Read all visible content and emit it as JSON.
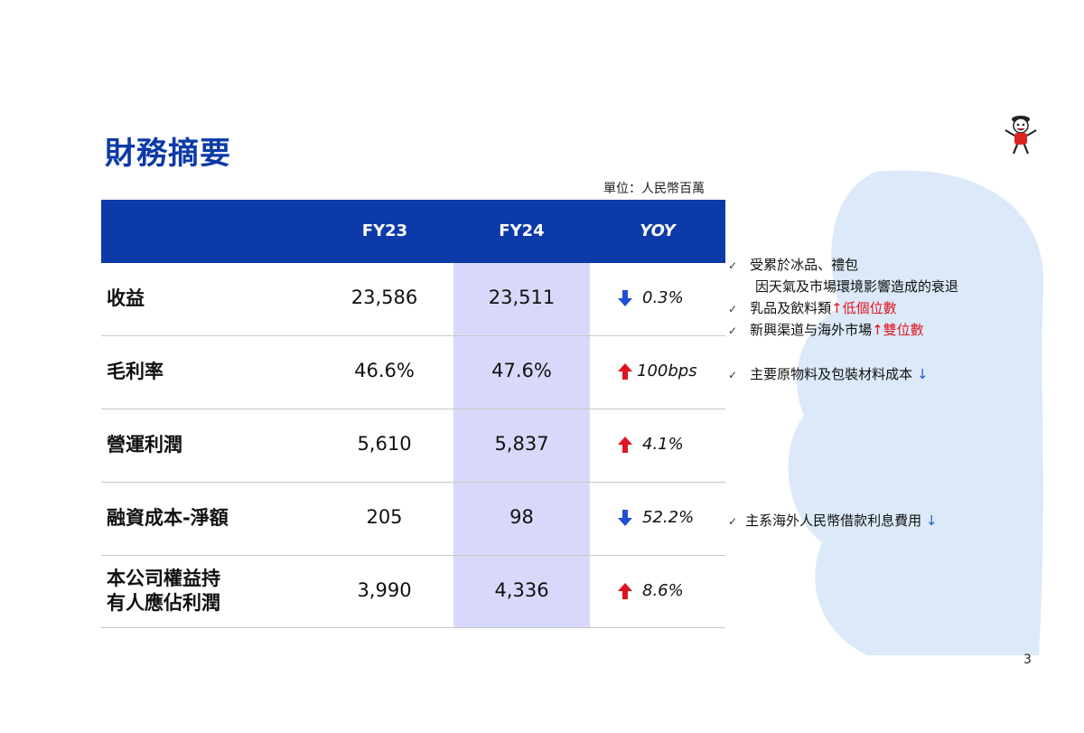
{
  "header": {
    "title": "財務摘要",
    "unit": "單位：人民幣百萬",
    "page_number": "3"
  },
  "table": {
    "columns": [
      "",
      "FY23",
      "FY24",
      "YOY"
    ],
    "rows": [
      {
        "label": "收益",
        "fy23": "23,586",
        "fy24": "23,511",
        "direction": "down",
        "yoy": "0.3%"
      },
      {
        "label": "毛利率",
        "fy23": "46.6%",
        "fy24": "47.6%",
        "direction": "up",
        "yoy": "100bps"
      },
      {
        "label": "營運利潤",
        "fy23": "5,610",
        "fy24": "5,837",
        "direction": "up",
        "yoy": "4.1%"
      },
      {
        "label": "融資成本-淨額",
        "fy23": "205",
        "fy24": "98",
        "direction": "down",
        "yoy": "52.2%"
      },
      {
        "label_line1": "本公司權益持",
        "label_line2": "有人應佔利潤",
        "fy23": "3,990",
        "fy24": "4,336",
        "direction": "up",
        "yoy": "8.6%"
      }
    ]
  },
  "notes": {
    "check_mark": "✓",
    "revenue_1": "受累於冰品、禮包",
    "revenue_1b": "因天氣及市場環境影響造成的衰退",
    "revenue_2": "乳品及飲料類",
    "revenue_2_arrow": "↑",
    "revenue_2_hl": "低個位數",
    "revenue_3": "新興渠道与海外市場",
    "revenue_3_arrow": "↑",
    "revenue_3_hl": "雙位數",
    "margin_1": "主要原物料及包裝材料成本",
    "margin_1_arrow": "↓",
    "finance_1": "主系海外人民幣借款利息費用",
    "finance_1_arrow": "↓"
  },
  "colors": {
    "brand_blue": "#0c3aa8",
    "highlight_column": "#d8d9fa",
    "up_red": "#e0141e",
    "down_blue": "#1f4fd6"
  }
}
